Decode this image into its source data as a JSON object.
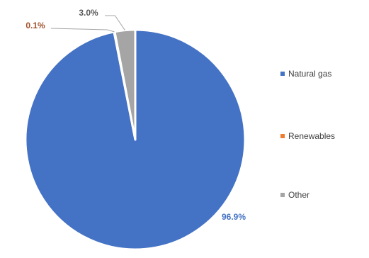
{
  "chart_data": {
    "type": "pie",
    "categories": [
      "Natural gas",
      "Renewables",
      "Other"
    ],
    "values": [
      96.9,
      0.1,
      3.0
    ],
    "data_labels": [
      "96.9%",
      "0.1%",
      "3.0%"
    ],
    "colors": [
      "#4472c4",
      "#ed7d31",
      "#a5a5a5"
    ],
    "label_colors": [
      "#4472c4",
      "#a0522d",
      "#595959"
    ],
    "legend_position": "right",
    "title": ""
  }
}
